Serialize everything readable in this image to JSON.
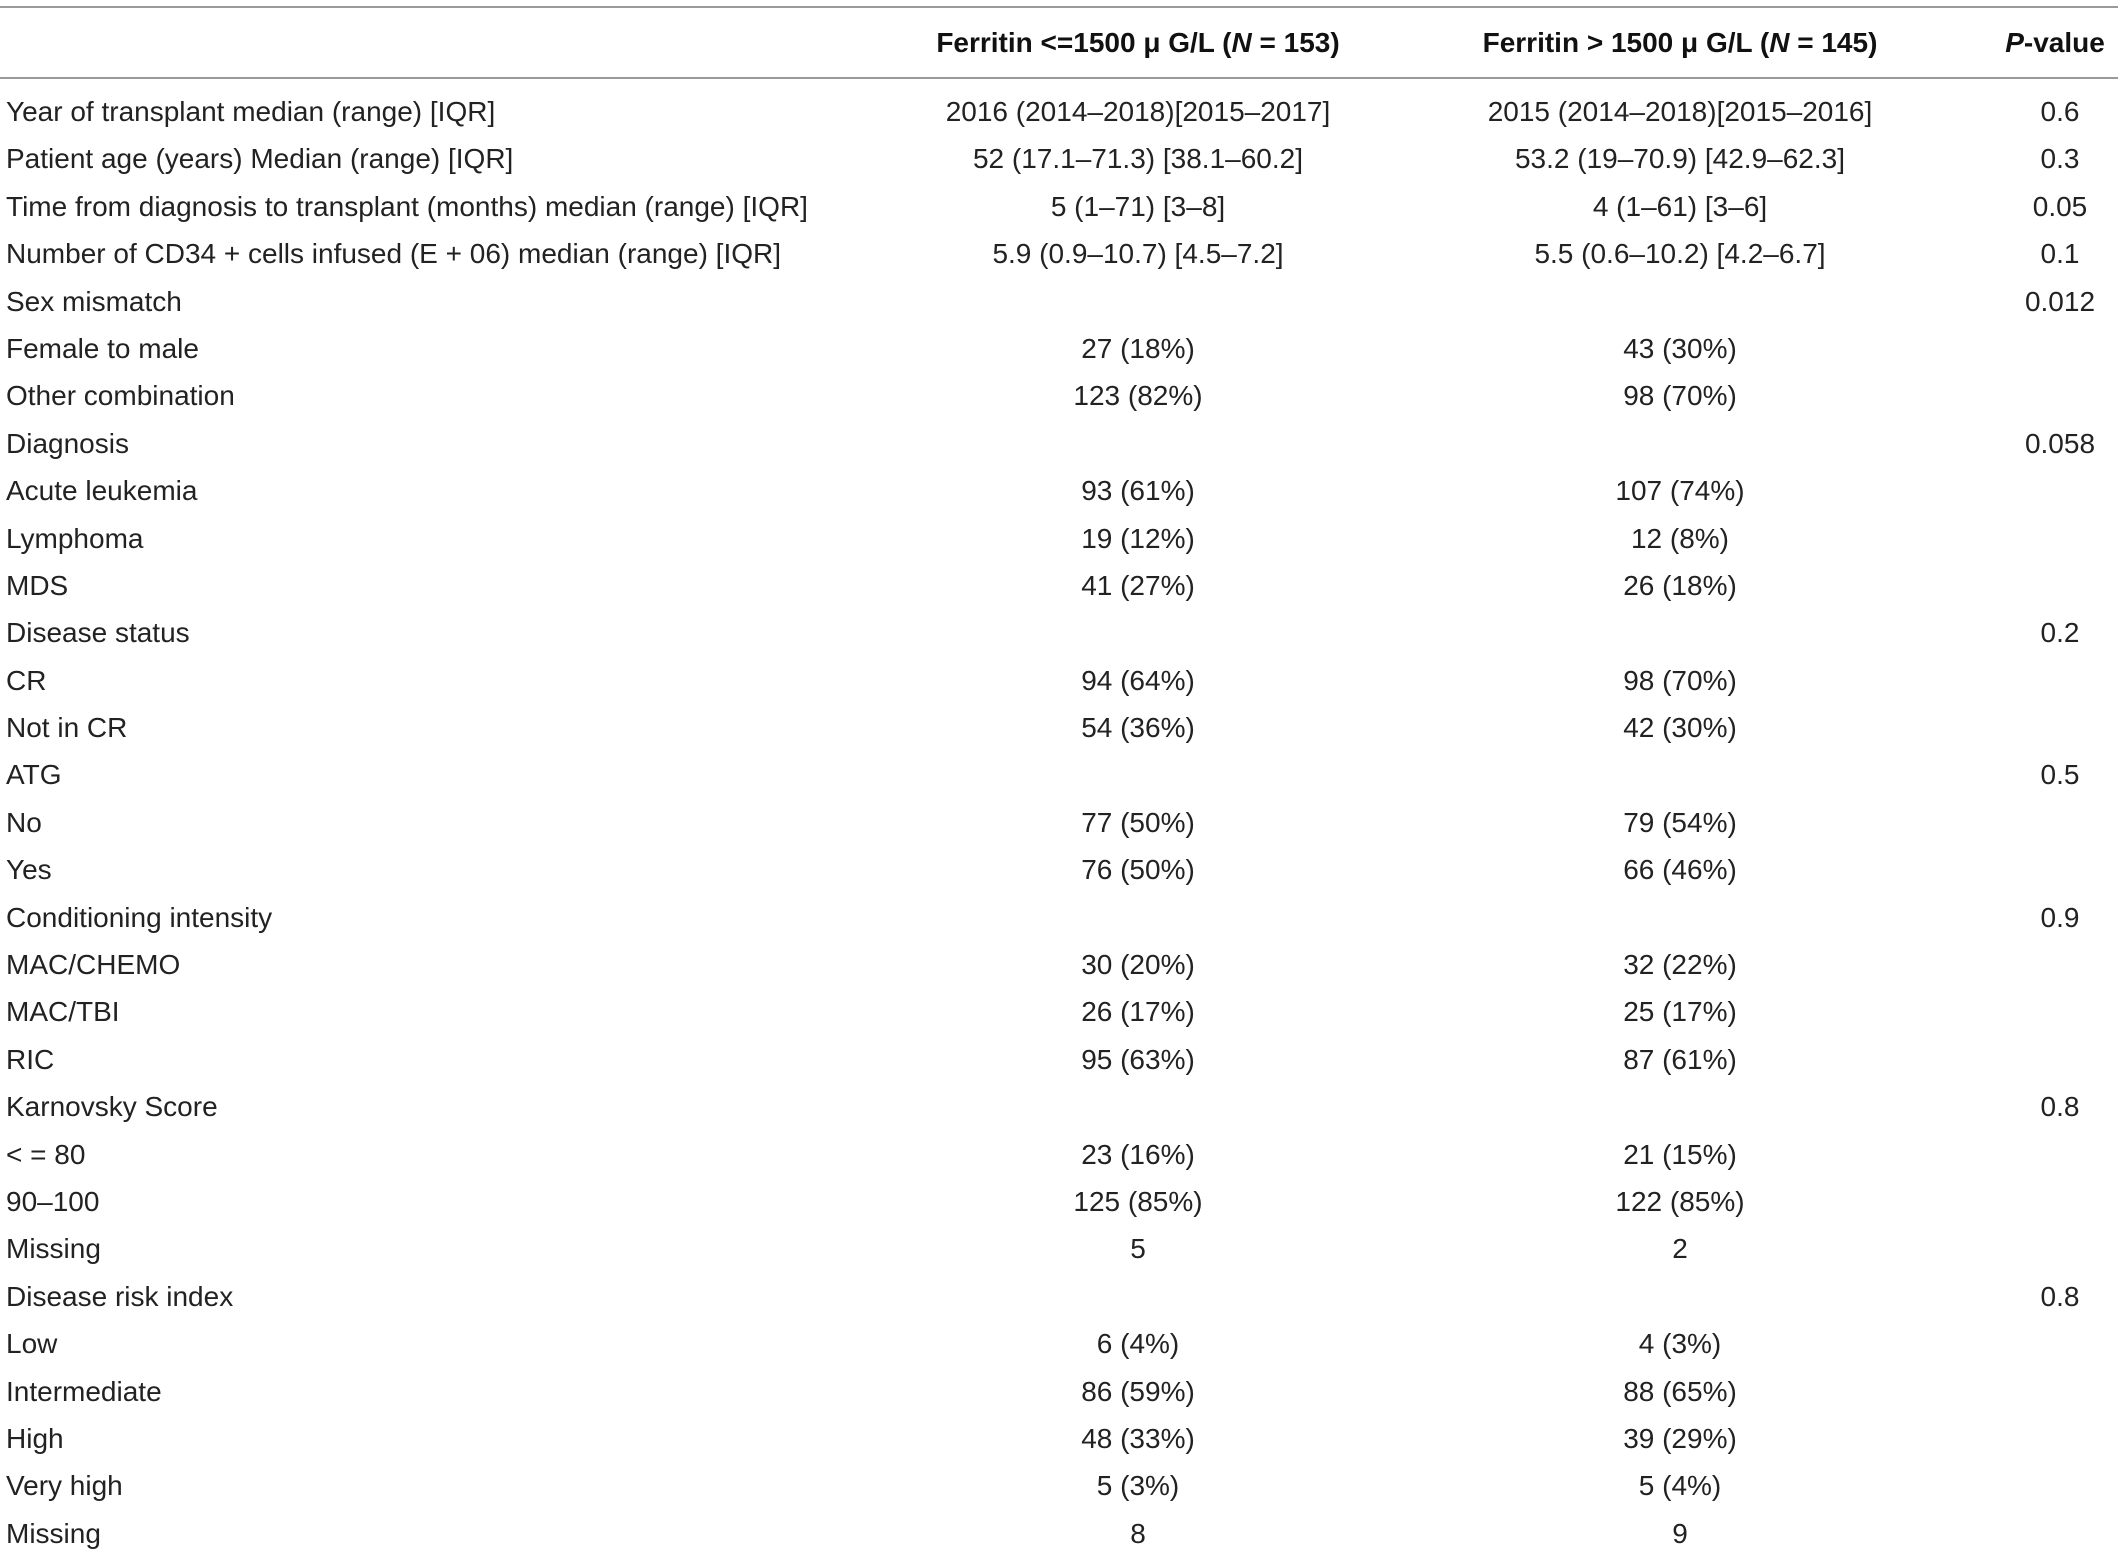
{
  "table": {
    "header": {
      "label": "",
      "group1_prefix": "Ferritin <=1500 μ G/L (",
      "group1_n_label": "N",
      "group1_suffix": " = 153)",
      "group2_prefix": "Ferritin > 1500 μ G/L (",
      "group2_n_label": "N",
      "group2_suffix": " = 145)",
      "p_label": "P",
      "p_suffix": "-value"
    },
    "rows": [
      {
        "label": "Year of transplant median (range) [IQR]",
        "g1": "2016 (2014–2018)[2015–2017]",
        "g2": "2015 (2014–2018)[2015–2016]",
        "p": "0.6"
      },
      {
        "label": "Patient age (years) Median (range) [IQR]",
        "g1": "52 (17.1–71.3) [38.1–60.2]",
        "g2": "53.2 (19–70.9) [42.9–62.3]",
        "p": "0.3"
      },
      {
        "label": "Time from diagnosis to transplant (months) median (range) [IQR]",
        "g1": "5 (1–71) [3–8]",
        "g2": "4 (1–61) [3–6]",
        "p": "0.05"
      },
      {
        "label": "Number of CD34 + cells infused (E + 06) median (range) [IQR]",
        "g1": "5.9 (0.9–10.7) [4.5–7.2]",
        "g2": "5.5 (0.6–10.2) [4.2–6.7]",
        "p": "0.1"
      },
      {
        "label": "Sex mismatch",
        "g1": "",
        "g2": "",
        "p": "0.012"
      },
      {
        "label": "Female to male",
        "g1": "27 (18%)",
        "g2": "43 (30%)",
        "p": ""
      },
      {
        "label": "Other combination",
        "g1": "123 (82%)",
        "g2": "98 (70%)",
        "p": ""
      },
      {
        "label": "Diagnosis",
        "g1": "",
        "g2": "",
        "p": "0.058"
      },
      {
        "label": "Acute leukemia",
        "g1": "93 (61%)",
        "g2": "107 (74%)",
        "p": ""
      },
      {
        "label": "Lymphoma",
        "g1": "19 (12%)",
        "g2": "12 (8%)",
        "p": ""
      },
      {
        "label": "MDS",
        "g1": "41 (27%)",
        "g2": "26 (18%)",
        "p": ""
      },
      {
        "label": "Disease status",
        "g1": "",
        "g2": "",
        "p": "0.2"
      },
      {
        "label": "CR",
        "g1": "94 (64%)",
        "g2": "98 (70%)",
        "p": ""
      },
      {
        "label": "Not in CR",
        "g1": "54 (36%)",
        "g2": "42 (30%)",
        "p": ""
      },
      {
        "label": "ATG",
        "g1": "",
        "g2": "",
        "p": "0.5"
      },
      {
        "label": "No",
        "g1": "77 (50%)",
        "g2": "79 (54%)",
        "p": ""
      },
      {
        "label": "Yes",
        "g1": "76 (50%)",
        "g2": "66 (46%)",
        "p": ""
      },
      {
        "label": "Conditioning intensity",
        "g1": "",
        "g2": "",
        "p": "0.9"
      },
      {
        "label": "MAC/CHEMO",
        "g1": "30 (20%)",
        "g2": "32 (22%)",
        "p": ""
      },
      {
        "label": "MAC/TBI",
        "g1": "26 (17%)",
        "g2": "25 (17%)",
        "p": ""
      },
      {
        "label": "RIC",
        "g1": "95 (63%)",
        "g2": "87 (61%)",
        "p": ""
      },
      {
        "label": "Karnovsky Score",
        "g1": "",
        "g2": "",
        "p": "0.8"
      },
      {
        "label": "< = 80",
        "g1": "23 (16%)",
        "g2": "21 (15%)",
        "p": ""
      },
      {
        "label": "90–100",
        "g1": "125 (85%)",
        "g2": "122 (85%)",
        "p": ""
      },
      {
        "label": "Missing",
        "g1": "5",
        "g2": "2",
        "p": ""
      },
      {
        "label": "Disease risk index",
        "g1": "",
        "g2": "",
        "p": "0.8"
      },
      {
        "label": "Low",
        "g1": "6 (4%)",
        "g2": "4 (3%)",
        "p": ""
      },
      {
        "label": "Intermediate",
        "g1": "86 (59%)",
        "g2": "88 (65%)",
        "p": ""
      },
      {
        "label": "High",
        "g1": "48 (33%)",
        "g2": "39 (29%)",
        "p": ""
      },
      {
        "label": "Very high",
        "g1": "5 (3%)",
        "g2": "5 (4%)",
        "p": ""
      },
      {
        "label": "Missing",
        "g1": "8",
        "g2": "9",
        "p": ""
      }
    ]
  }
}
